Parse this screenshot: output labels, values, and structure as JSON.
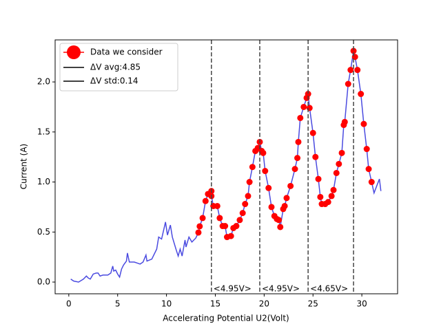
{
  "chart_data": {
    "type": "line",
    "xlabel": "Accelerating Potential U2(Volt)",
    "ylabel": "Current (A)",
    "xlim": [
      -1.4,
      33.66
    ],
    "ylim": [
      -0.117,
      2.42
    ],
    "xticks": [
      0,
      5,
      10,
      15,
      20,
      25,
      30
    ],
    "yticks": [
      {
        "value": 0,
        "label": "0.0"
      },
      0.5,
      {
        "value": 1,
        "label": "1.0"
      },
      1.5,
      {
        "value": 2,
        "label": "2.0"
      }
    ],
    "series": [
      {
        "color": "#4a4ae0",
        "x": [
          0.2,
          0.5,
          1.0,
          1.5,
          1.8,
          2.0,
          2.2,
          2.5,
          2.8,
          3.0,
          3.2,
          3.5,
          4.0,
          4.3,
          4.5,
          4.6,
          4.8,
          5.0,
          5.2,
          5.4,
          5.6,
          5.9,
          6.0,
          6.2,
          6.7,
          7.0,
          7.3,
          7.6,
          7.9,
          8.0,
          8.5,
          9.0,
          9.2,
          9.5,
          9.9,
          10.1,
          10.4,
          10.6,
          11.0,
          11.2,
          11.4,
          11.6,
          11.9,
          12.0,
          12.3,
          12.6,
          13.0,
          13.27,
          13.4,
          13.7,
          14.0,
          14.25,
          14.6,
          14.6,
          14.8,
          15.2,
          15.45,
          15.75,
          16.0,
          16.2,
          16.6,
          16.85,
          17.15,
          17.5,
          17.8,
          18.05,
          18.35,
          18.5,
          18.8,
          19.1,
          19.35,
          19.55,
          19.75,
          19.9,
          20.1,
          20.45,
          20.75,
          21.05,
          21.3,
          21.5,
          21.65,
          21.95,
          22.1,
          22.3,
          22.7,
          23.15,
          23.4,
          23.5,
          23.7,
          24.05,
          24.35,
          24.5,
          24.65,
          25.0,
          25.25,
          25.55,
          25.75,
          25.9,
          26.25,
          26.55,
          26.9,
          27.1,
          27.4,
          27.65,
          27.95,
          28.15,
          28.25,
          28.6,
          28.85,
          29.15,
          29.3,
          29.55,
          29.9,
          30.2,
          30.5,
          30.7,
          31.0,
          31.25,
          31.6,
          31.8,
          31.95
        ],
        "values": [
          0.03,
          0.01,
          0.0,
          0.03,
          0.06,
          0.04,
          0.03,
          0.08,
          0.09,
          0.09,
          0.06,
          0.07,
          0.07,
          0.09,
          0.16,
          0.11,
          0.12,
          0.08,
          0.05,
          0.13,
          0.17,
          0.21,
          0.29,
          0.2,
          0.2,
          0.19,
          0.18,
          0.2,
          0.27,
          0.21,
          0.23,
          0.33,
          0.45,
          0.43,
          0.6,
          0.47,
          0.57,
          0.45,
          0.32,
          0.26,
          0.33,
          0.26,
          0.42,
          0.35,
          0.45,
          0.4,
          0.44,
          0.495,
          0.557,
          0.64,
          0.81,
          0.88,
          0.91,
          0.86,
          0.76,
          0.76,
          0.64,
          0.56,
          0.56,
          0.45,
          0.46,
          0.54,
          0.56,
          0.62,
          0.69,
          0.78,
          0.86,
          1.0,
          1.15,
          1.31,
          1.34,
          1.4,
          1.31,
          1.29,
          1.11,
          0.94,
          0.75,
          0.66,
          0.63,
          0.62,
          0.55,
          0.73,
          0.76,
          0.84,
          0.96,
          1.13,
          1.24,
          1.4,
          1.64,
          1.75,
          1.84,
          1.88,
          1.74,
          1.49,
          1.25,
          1.03,
          0.85,
          0.78,
          0.78,
          0.8,
          0.86,
          0.92,
          1.09,
          1.18,
          1.29,
          1.57,
          1.6,
          1.98,
          2.12,
          2.31,
          2.25,
          2.12,
          1.88,
          1.58,
          1.33,
          1.13,
          1.0,
          0.89,
          0.98,
          1.03,
          0.91
        ]
      },
      {
        "name": "Data we consider",
        "color": "#ff0000",
        "marker": "circle",
        "x": [
          13.27,
          13.4,
          13.7,
          14.0,
          14.25,
          14.6,
          14.6,
          14.8,
          15.2,
          15.45,
          15.75,
          16.0,
          16.2,
          16.6,
          16.85,
          17.15,
          17.5,
          17.8,
          18.05,
          18.35,
          18.5,
          18.8,
          19.1,
          19.35,
          19.55,
          19.75,
          19.9,
          20.1,
          20.45,
          20.75,
          21.05,
          21.3,
          21.5,
          21.65,
          21.95,
          22.1,
          22.3,
          22.7,
          23.15,
          23.4,
          23.5,
          23.7,
          24.05,
          24.35,
          24.5,
          24.65,
          25.0,
          25.25,
          25.55,
          25.75,
          25.9,
          26.25,
          26.55,
          26.9,
          27.1,
          27.4,
          27.65,
          27.95,
          28.15,
          28.25,
          28.6,
          28.85,
          29.15,
          29.3,
          29.55,
          29.9,
          30.2,
          30.5,
          30.7,
          31.0
        ],
        "values": [
          0.495,
          0.557,
          0.64,
          0.81,
          0.88,
          0.91,
          0.86,
          0.76,
          0.76,
          0.64,
          0.56,
          0.56,
          0.45,
          0.46,
          0.54,
          0.56,
          0.62,
          0.69,
          0.78,
          0.86,
          1.0,
          1.15,
          1.31,
          1.34,
          1.4,
          1.31,
          1.29,
          1.11,
          0.94,
          0.75,
          0.66,
          0.63,
          0.62,
          0.55,
          0.73,
          0.76,
          0.84,
          0.96,
          1.13,
          1.24,
          1.4,
          1.64,
          1.75,
          1.84,
          1.88,
          1.74,
          1.49,
          1.25,
          1.03,
          0.85,
          0.78,
          0.78,
          0.8,
          0.86,
          0.92,
          1.09,
          1.18,
          1.29,
          1.57,
          1.6,
          1.98,
          2.12,
          2.31,
          2.25,
          2.12,
          1.88,
          1.58,
          1.33,
          1.13,
          1.0
        ]
      }
    ],
    "vlines": {
      "x": [
        14.6,
        19.55,
        24.5,
        29.15
      ],
      "color": "#444444"
    },
    "annotations": [
      "<4.95V>",
      "<4.95V>",
      "<4.65V>"
    ],
    "legend_lines": [
      "ΔV avg:4.85",
      "ΔV std:0.14"
    ],
    "legend_line_color": "#000000"
  }
}
